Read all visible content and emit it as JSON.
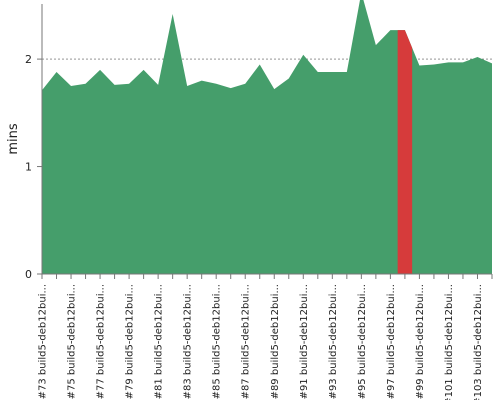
{
  "chart_data": {
    "type": "area",
    "ylabel": "mins",
    "ylim": [
      0,
      2.55
    ],
    "yticks": [
      0,
      1,
      2
    ],
    "grid": true,
    "colors": {
      "area": "#459e6b",
      "highlight": "#d63b3b",
      "grid": "#555555",
      "axis": "#777777"
    },
    "highlight_index": 25,
    "x_labels": [
      "#73 build5-deb12bui...",
      "#75 build5-deb12bui...",
      "#77 build5-deb12bui...",
      "#79 build5-deb12bui...",
      "#81 build5-deb12bui...",
      "#83 build5-deb12bui...",
      "#85 build5-deb12bui...",
      "#87 build5-deb12bui...",
      "#89 build5-deb12bui...",
      "#91 build5-deb12bui...",
      "#93 build5-deb12bui...",
      "#95 build5-deb12bui...",
      "#97 build5-deb12bui...",
      "#99 build5-deb12bui...",
      "#101 build5-deb12bui...",
      "#103 build5-deb12bui..."
    ],
    "x_label_every": 2,
    "values": [
      1.71,
      1.88,
      1.75,
      1.77,
      1.9,
      1.76,
      1.77,
      1.9,
      1.76,
      2.42,
      1.75,
      1.8,
      1.77,
      1.73,
      1.77,
      1.95,
      1.72,
      1.82,
      2.04,
      1.88,
      1.88,
      1.88,
      2.62,
      2.13,
      2.27,
      2.27,
      1.94,
      1.95,
      1.97,
      1.97,
      2.02,
      1.96
    ]
  }
}
